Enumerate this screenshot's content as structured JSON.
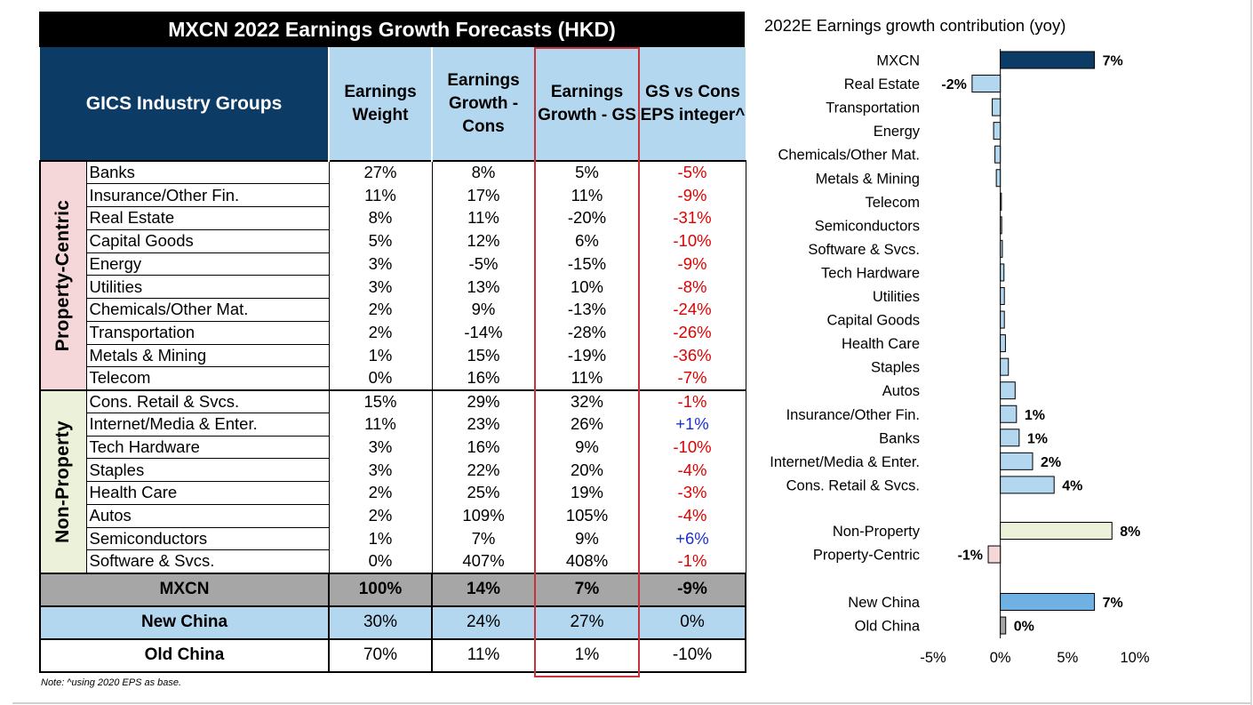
{
  "table": {
    "title": "MXCN 2022 Earnings Growth Forecasts (HKD)",
    "headers": {
      "gics": "GICS Industry Groups",
      "weight": "Earnings Weight",
      "cons": "Earnings Growth - Cons",
      "gs": "Earnings Growth - GS",
      "diff": "GS vs Cons EPS integer^"
    },
    "groups": [
      {
        "label": "Property-Centric",
        "rows": [
          {
            "industry": "Banks",
            "weight": "27%",
            "cons": "8%",
            "gs": "5%",
            "diff": "-5%"
          },
          {
            "industry": "Insurance/Other Fin.",
            "weight": "11%",
            "cons": "17%",
            "gs": "11%",
            "diff": "-9%"
          },
          {
            "industry": "Real Estate",
            "weight": "8%",
            "cons": "11%",
            "gs": "-20%",
            "diff": "-31%"
          },
          {
            "industry": "Capital Goods",
            "weight": "5%",
            "cons": "12%",
            "gs": "6%",
            "diff": "-10%"
          },
          {
            "industry": "Energy",
            "weight": "3%",
            "cons": "-5%",
            "gs": "-15%",
            "diff": "-9%"
          },
          {
            "industry": "Utilities",
            "weight": "3%",
            "cons": "13%",
            "gs": "10%",
            "diff": "-8%"
          },
          {
            "industry": "Chemicals/Other Mat.",
            "weight": "2%",
            "cons": "9%",
            "gs": "-13%",
            "diff": "-24%"
          },
          {
            "industry": "Transportation",
            "weight": "2%",
            "cons": "-14%",
            "gs": "-28%",
            "diff": "-26%"
          },
          {
            "industry": "Metals & Mining",
            "weight": "1%",
            "cons": "15%",
            "gs": "-19%",
            "diff": "-36%"
          },
          {
            "industry": "Telecom",
            "weight": "0%",
            "cons": "16%",
            "gs": "11%",
            "diff": "-7%"
          }
        ]
      },
      {
        "label": "Non-Property",
        "rows": [
          {
            "industry": "Cons. Retail & Svcs.",
            "weight": "15%",
            "cons": "29%",
            "gs": "32%",
            "diff": "-1%"
          },
          {
            "industry": "Internet/Media & Enter.",
            "weight": "11%",
            "cons": "23%",
            "gs": "26%",
            "diff": "+1%"
          },
          {
            "industry": "Tech Hardware",
            "weight": "3%",
            "cons": "16%",
            "gs": "9%",
            "diff": "-10%"
          },
          {
            "industry": "Staples",
            "weight": "3%",
            "cons": "22%",
            "gs": "20%",
            "diff": "-4%"
          },
          {
            "industry": "Health Care",
            "weight": "2%",
            "cons": "25%",
            "gs": "19%",
            "diff": "-3%"
          },
          {
            "industry": "Autos",
            "weight": "2%",
            "cons": "109%",
            "gs": "105%",
            "diff": "-4%"
          },
          {
            "industry": "Semiconductors",
            "weight": "1%",
            "cons": "7%",
            "gs": "9%",
            "diff": "+6%"
          },
          {
            "industry": "Software & Svcs.",
            "weight": "0%",
            "cons": "407%",
            "gs": "408%",
            "diff": "-1%"
          }
        ]
      }
    ],
    "summary": [
      {
        "name": "MXCN",
        "weight": "100%",
        "cons": "14%",
        "gs": "7%",
        "diff": "-9%"
      },
      {
        "name": "New China",
        "weight": "30%",
        "cons": "24%",
        "gs": "27%",
        "diff": "0%"
      },
      {
        "name": "Old China",
        "weight": "70%",
        "cons": "11%",
        "gs": "1%",
        "diff": "-10%"
      }
    ],
    "note": "Note: ^using 2020 EPS as base.",
    "colors": {
      "negative": "#e00000",
      "positive": "#1a2fd1",
      "header_dark": "#0c3c66",
      "header_light": "#b4d7f0"
    }
  },
  "chart_data": {
    "type": "bar",
    "orientation": "horizontal",
    "title": "2022E Earnings growth contribution (yoy)",
    "xlabel": "",
    "ylabel": "",
    "xlim": [
      -5,
      10
    ],
    "xticks": [
      -5,
      0,
      5,
      10
    ],
    "xtick_labels": [
      "-5%",
      "0%",
      "5%",
      "10%"
    ],
    "grid": false,
    "groups": [
      {
        "categories": [
          "MXCN",
          "Real Estate",
          "Transportation",
          "Energy",
          "Chemicals/Other Mat.",
          "Metals & Mining",
          "Telecom",
          "Semiconductors",
          "Software & Svcs.",
          "Tech Hardware",
          "Utilities",
          "Capital Goods",
          "Health Care",
          "Staples",
          "Autos",
          "Insurance/Other Fin.",
          "Banks",
          "Internet/Media & Enter.",
          "Cons. Retail & Svcs."
        ],
        "values": [
          7.0,
          -2.1,
          -0.6,
          -0.5,
          -0.4,
          -0.3,
          0.0,
          0.1,
          0.15,
          0.27,
          0.3,
          0.3,
          0.38,
          0.6,
          1.1,
          1.2,
          1.4,
          2.4,
          4.0
        ],
        "labels": [
          "7%",
          "-2%",
          "",
          "",
          "",
          "",
          "",
          "",
          "",
          "",
          "",
          "",
          "",
          "",
          "",
          "1%",
          "1%",
          "2%",
          "4%"
        ],
        "colors": [
          "#0c3c66",
          "#b4d7f0",
          "#b4d7f0",
          "#b4d7f0",
          "#b4d7f0",
          "#b4d7f0",
          "#b4d7f0",
          "#b4d7f0",
          "#b4d7f0",
          "#b4d7f0",
          "#b4d7f0",
          "#b4d7f0",
          "#b4d7f0",
          "#b4d7f0",
          "#b4d7f0",
          "#b4d7f0",
          "#b4d7f0",
          "#b4d7f0",
          "#b4d7f0"
        ]
      },
      {
        "categories": [
          "Non-Property",
          "Property-Centric"
        ],
        "values": [
          8.3,
          -0.9
        ],
        "labels": [
          "8%",
          "-1%"
        ],
        "colors": [
          "#ebf2d9",
          "#f5d6d9"
        ]
      },
      {
        "categories": [
          "New China",
          "Old China"
        ],
        "values": [
          7.0,
          0.4
        ],
        "labels": [
          "7%",
          "0%"
        ],
        "colors": [
          "#6fb1e2",
          "#a6a6a6"
        ]
      }
    ]
  }
}
